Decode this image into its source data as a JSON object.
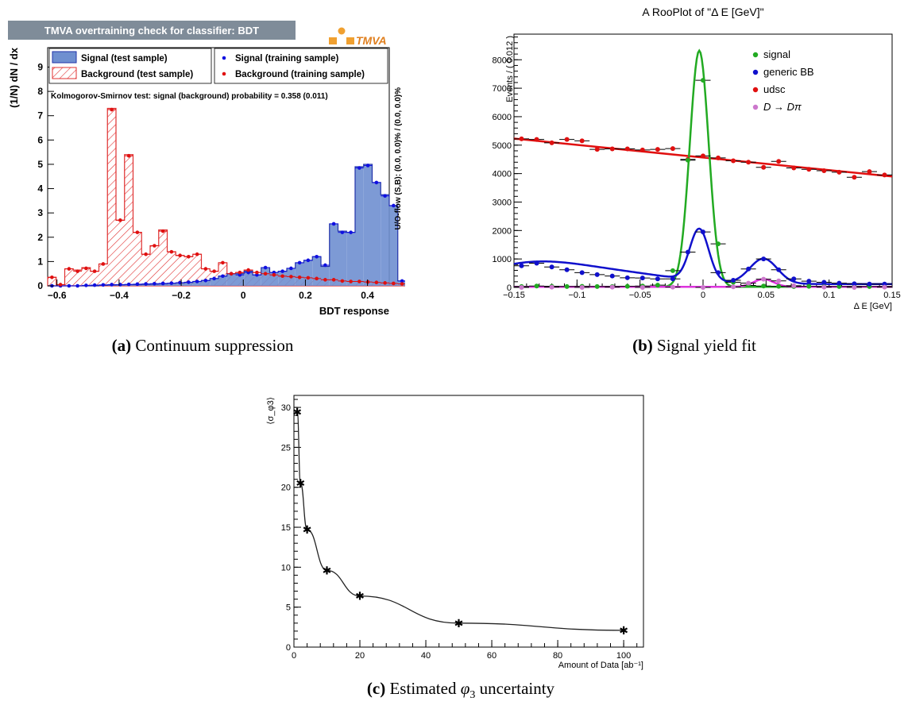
{
  "captions": {
    "a_label": "(a)",
    "a_text": "Continuum suppression",
    "b_label": "(b)",
    "b_text": "Signal yield fit",
    "c_label": "(c)",
    "c_text_pre": "Estimated ",
    "c_symbol": "φ",
    "c_sub": "3",
    "c_text_post": " uncertainty"
  },
  "chart_data": [
    {
      "type": "bar",
      "id": "bdt_overtraining",
      "title": "TMVA overtraining check for classifier: BDT",
      "logo": "TMVA",
      "xlabel": "BDT response",
      "ylabel": "(1/N) dN / dx",
      "right_label": "U/O-flow (S,B): (0.0, 0.0)% / (0.0, 0.0)%",
      "ks_text": "Kolmogorov-Smirnov test: signal (background) probability = 0.358 (0.011)",
      "xlim": [
        -0.63,
        0.47
      ],
      "ylim": [
        0,
        9.8
      ],
      "xticks": [
        -0.6,
        -0.4,
        -0.2,
        0,
        0.2,
        0.4
      ],
      "yticks": [
        0,
        1,
        2,
        3,
        4,
        5,
        6,
        7,
        8,
        9
      ],
      "bin_start": -0.63,
      "bin_width": 0.0275,
      "legend": [
        "Signal (test sample)",
        "Background (test sample)",
        "Signal (training sample)",
        "Background (training sample)"
      ],
      "colors": {
        "signal_fill": "#6f8fd0",
        "signal_line": "#2233aa",
        "background": "#e03030",
        "signal_point": "#1010e0",
        "bg_point": "#e01010",
        "title_bg": "#7f8c99"
      },
      "series": [
        {
          "name": "Signal (test sample)",
          "values": [
            0.0,
            0.0,
            0.0,
            0.0,
            0.0,
            0.0,
            0.02,
            0.03,
            0.04,
            0.05,
            0.05,
            0.06,
            0.07,
            0.08,
            0.1,
            0.12,
            0.14,
            0.18,
            0.22,
            0.3,
            0.4,
            0.5,
            0.5,
            0.6,
            0.45,
            0.75,
            0.55,
            0.6,
            0.72,
            0.95,
            1.05,
            1.2,
            0.8,
            2.55,
            2.25,
            2.2,
            4.9,
            5.0,
            4.25,
            3.75,
            3.3,
            0.2
          ]
        },
        {
          "name": "Background (test sample)",
          "values": [
            0.35,
            0.05,
            0.7,
            0.65,
            0.75,
            0.6,
            0.9,
            7.3,
            2.7,
            5.4,
            2.2,
            1.3,
            1.65,
            2.3,
            1.4,
            1.25,
            1.2,
            1.3,
            0.7,
            0.6,
            0.95,
            0.5,
            0.55,
            0.65,
            0.55,
            0.5,
            0.45,
            0.4,
            0.38,
            0.35,
            0.33,
            0.3,
            0.25,
            0.25,
            0.2,
            0.18,
            0.18,
            0.16,
            0.14,
            0.12,
            0.1,
            0.08
          ]
        },
        {
          "name": "Signal (training sample)",
          "values": [
            0.0,
            0.0,
            0.0,
            0.0,
            0.02,
            0.03,
            0.04,
            0.05,
            0.05,
            0.06,
            0.07,
            0.08,
            0.09,
            0.1,
            0.11,
            0.13,
            0.15,
            0.18,
            0.22,
            0.3,
            0.4,
            0.5,
            0.45,
            0.55,
            0.45,
            0.75,
            0.55,
            0.6,
            0.72,
            0.95,
            1.05,
            1.2,
            0.85,
            2.55,
            2.2,
            2.2,
            4.85,
            4.95,
            4.25,
            3.7,
            3.3,
            0.2
          ]
        },
        {
          "name": "Background (training sample)",
          "values": [
            0.35,
            0.05,
            0.7,
            0.6,
            0.72,
            0.6,
            0.9,
            7.25,
            2.7,
            5.35,
            2.2,
            1.3,
            1.65,
            2.25,
            1.4,
            1.25,
            1.2,
            1.3,
            0.7,
            0.6,
            0.95,
            0.5,
            0.55,
            0.65,
            0.55,
            0.5,
            0.45,
            0.4,
            0.38,
            0.35,
            0.33,
            0.3,
            0.25,
            0.25,
            0.2,
            0.18,
            0.18,
            0.16,
            0.14,
            0.12,
            0.1,
            0.08
          ]
        }
      ]
    },
    {
      "type": "scatter",
      "id": "delta_e_fit",
      "title": "A RooPlot of \"Δ E [GeV]\"",
      "xlabel": "Δ E [GeV]",
      "ylabel": "Events / ( 0.012 )",
      "xlim": [
        -0.15,
        0.15
      ],
      "ylim": [
        0,
        8900
      ],
      "xticks": [
        -0.15,
        -0.1,
        -0.05,
        0,
        0.05,
        0.1,
        0.15
      ],
      "xtick_labels": [
        "−0.15",
        "−0.1",
        "−0.05",
        "0",
        "0.05",
        "0.1",
        "0.15"
      ],
      "yticks": [
        0,
        1000,
        2000,
        3000,
        4000,
        5000,
        6000,
        7000,
        8000
      ],
      "legend": [
        "signal",
        "generic BB",
        "udsc",
        "D → Dπ"
      ],
      "colors": {
        "signal": "#22aa22",
        "generic": "#1010cc",
        "udsc": "#e01010",
        "ddpi": "#dd33dd",
        "ddpi_point": "#cc77cc"
      },
      "series": [
        {
          "name": "udsc",
          "x": [
            -0.144,
            -0.132,
            -0.12,
            -0.108,
            -0.096,
            -0.084,
            -0.072,
            -0.06,
            -0.048,
            -0.036,
            -0.024,
            -0.012,
            0.0,
            0.012,
            0.024,
            0.036,
            0.048,
            0.06,
            0.072,
            0.084,
            0.096,
            0.108,
            0.12,
            0.132,
            0.144
          ],
          "y": [
            5220,
            5200,
            5080,
            5200,
            5150,
            4850,
            4870,
            4870,
            4830,
            4850,
            4880,
            4500,
            4620,
            4550,
            4450,
            4400,
            4220,
            4430,
            4200,
            4150,
            4100,
            4050,
            3870,
            4070,
            3950
          ],
          "fit_line": {
            "x": [
              -0.15,
              0.15
            ],
            "y": [
              5230,
              3900
            ]
          }
        },
        {
          "name": "signal",
          "x": [
            -0.144,
            -0.132,
            -0.12,
            -0.108,
            -0.096,
            -0.084,
            -0.072,
            -0.06,
            -0.048,
            -0.036,
            -0.024,
            -0.012,
            0.0,
            0.012,
            0.024,
            0.036,
            0.048,
            0.06,
            0.072,
            0.084,
            0.096,
            0.108,
            0.12,
            0.132,
            0.144
          ],
          "y": [
            30,
            50,
            40,
            30,
            40,
            30,
            30,
            40,
            50,
            80,
            590,
            4470,
            7280,
            1530,
            180,
            70,
            50,
            40,
            30,
            40,
            30,
            30,
            40,
            30,
            30
          ],
          "fit": {
            "mean": -0.003,
            "sigma": 0.0075,
            "amp": 8300
          }
        },
        {
          "name": "generic BB",
          "x": [
            -0.144,
            -0.132,
            -0.12,
            -0.108,
            -0.096,
            -0.084,
            -0.072,
            -0.06,
            -0.048,
            -0.036,
            -0.024,
            -0.012,
            0.0,
            0.012,
            0.024,
            0.036,
            0.048,
            0.06,
            0.072,
            0.084,
            0.096,
            0.108,
            0.12,
            0.132,
            0.144
          ],
          "y": [
            760,
            850,
            720,
            620,
            520,
            450,
            400,
            340,
            330,
            300,
            300,
            1240,
            1950,
            520,
            250,
            650,
            1000,
            620,
            300,
            220,
            180,
            150,
            130,
            120,
            120
          ]
        },
        {
          "name": "D → Dπ",
          "x": [
            -0.144,
            -0.12,
            -0.096,
            -0.072,
            -0.048,
            -0.024,
            0.0,
            0.024,
            0.036,
            0.048,
            0.06,
            0.072,
            0.096,
            0.12,
            0.144
          ],
          "y": [
            0,
            10,
            0,
            10,
            0,
            10,
            0,
            20,
            150,
            290,
            230,
            60,
            10,
            0,
            10
          ]
        }
      ]
    },
    {
      "type": "line",
      "id": "phi3_uncertainty",
      "xlabel": "Amount of Data [ab⁻¹]",
      "ylabel": "⟨σ_φ3⟩",
      "xlim": [
        0,
        106
      ],
      "ylim": [
        0,
        31.5
      ],
      "xticks": [
        0,
        20,
        40,
        60,
        80,
        100
      ],
      "yticks": [
        0,
        5,
        10,
        15,
        20,
        25,
        30
      ],
      "x": [
        1,
        2,
        4,
        10,
        20,
        50,
        100
      ],
      "y": [
        29.4,
        20.5,
        14.7,
        9.6,
        6.4,
        3.0,
        2.1
      ]
    }
  ]
}
